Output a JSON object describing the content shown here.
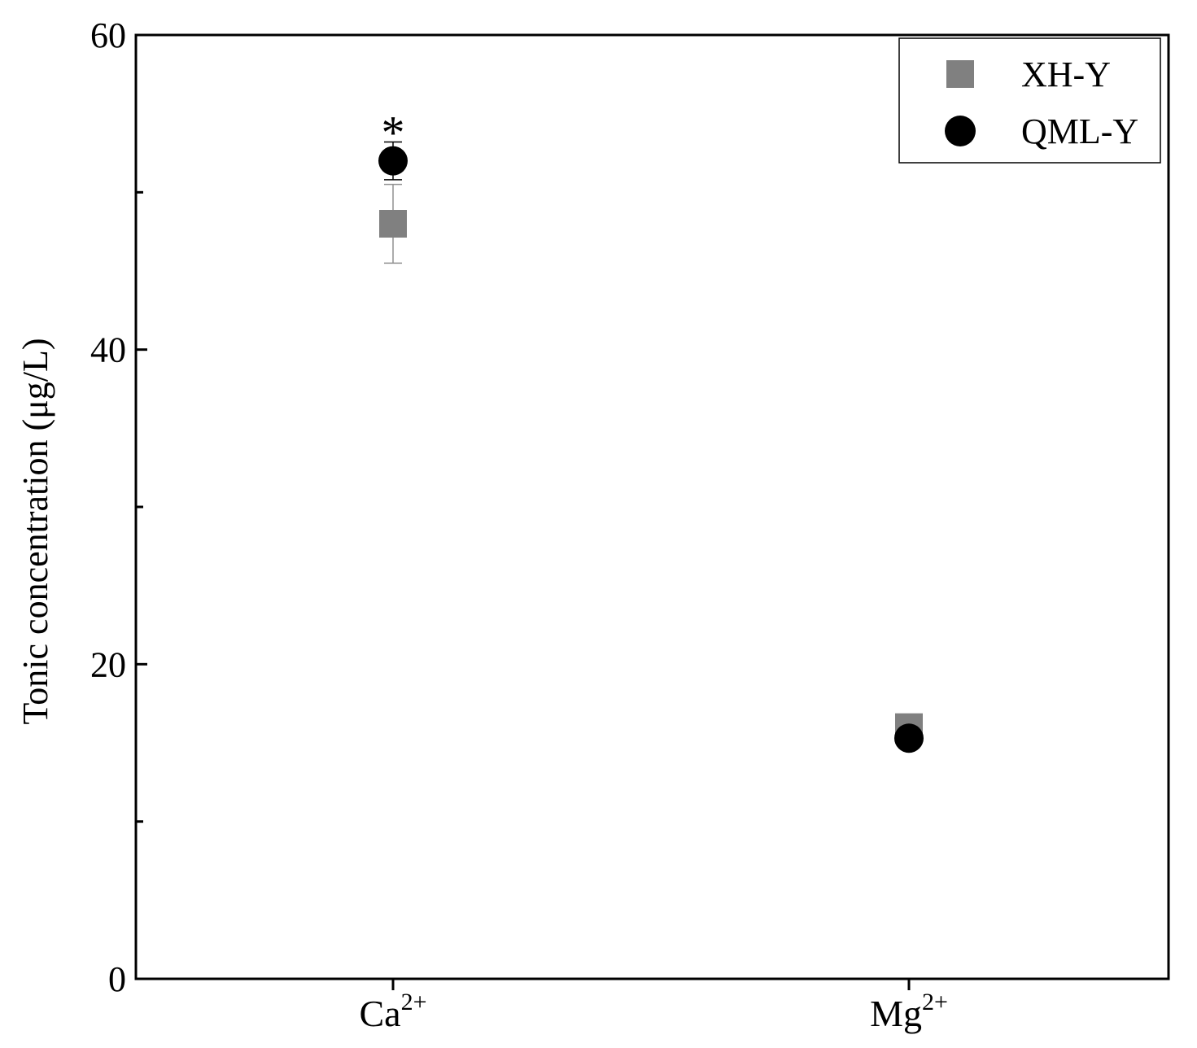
{
  "chart_data": {
    "type": "scatter",
    "title": "",
    "xlabel": "",
    "ylabel": "Tonic concentration (μg/L)",
    "categories": [
      {
        "base": "Ca",
        "sup": "2+"
      },
      {
        "base": "Mg",
        "sup": "2+"
      }
    ],
    "ylim": [
      0,
      60
    ],
    "yticks": [
      0,
      20,
      40,
      60
    ],
    "y_minor_ticks": [
      10,
      30,
      50
    ],
    "grid": false,
    "legend_position": "top-right",
    "series": [
      {
        "name": "XH-Y",
        "marker": "square",
        "color": "#808080",
        "values": [
          48.0,
          16.0
        ],
        "errors": [
          2.5,
          0.4
        ]
      },
      {
        "name": "QML-Y",
        "marker": "circle",
        "color": "#000000",
        "values": [
          52.0,
          15.3
        ],
        "errors": [
          1.2,
          0.3
        ]
      }
    ],
    "annotations": [
      {
        "category_index": 0,
        "text": "*"
      }
    ]
  }
}
